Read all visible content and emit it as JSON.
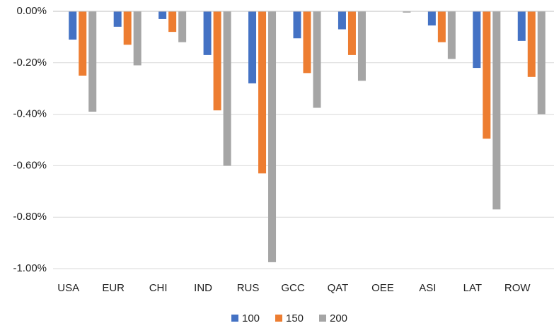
{
  "chart_data": {
    "type": "bar",
    "categories": [
      "USA",
      "EUR",
      "CHI",
      "IND",
      "RUS",
      "GCC",
      "QAT",
      "OEE",
      "ASI",
      "LAT",
      "ROW"
    ],
    "series": [
      {
        "name": "100",
        "color": "#4472c4",
        "values": [
          -0.11,
          -0.06,
          -0.03,
          -0.17,
          -0.28,
          -0.105,
          -0.07,
          0,
          -0.055,
          -0.22,
          -0.115
        ]
      },
      {
        "name": "150",
        "color": "#ed7d31",
        "values": [
          -0.25,
          -0.13,
          -0.08,
          -0.385,
          -0.63,
          -0.24,
          -0.17,
          0,
          -0.12,
          -0.495,
          -0.255
        ]
      },
      {
        "name": "200",
        "color": "#a5a5a5",
        "values": [
          -0.39,
          -0.21,
          -0.12,
          -0.6,
          -0.975,
          -0.375,
          -0.27,
          -0.005,
          -0.185,
          -0.77,
          -0.4
        ]
      }
    ],
    "ylim": [
      -1,
      0
    ],
    "yticks": [
      {
        "value": 0,
        "label": "0.00%"
      },
      {
        "value": -0.2,
        "label": "-0.20%"
      },
      {
        "value": -0.4,
        "label": "-0.40%"
      },
      {
        "value": -0.6,
        "label": "-0.60%"
      },
      {
        "value": -0.8,
        "label": "-0.80%"
      },
      {
        "value": -1,
        "label": "-1.00%"
      }
    ],
    "grid": true,
    "legend": "bottom"
  }
}
